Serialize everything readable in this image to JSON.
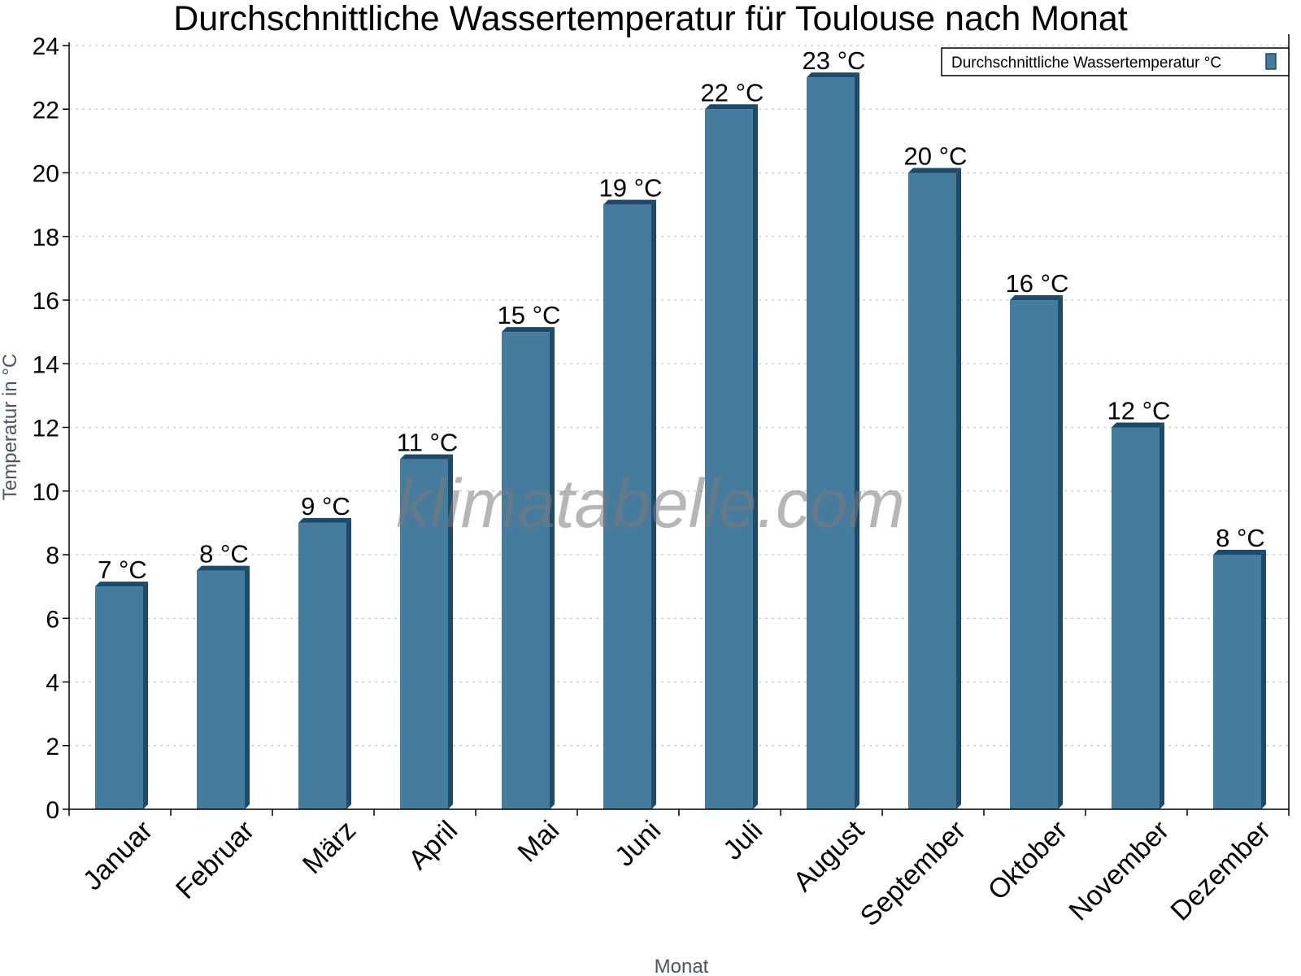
{
  "chart_data": {
    "type": "bar",
    "title": "Durchschnittliche Wassertemperatur für Toulouse nach Monat",
    "xlabel": "Monat",
    "ylabel": "Temperatur in °C",
    "ylim": [
      0,
      24
    ],
    "yticks": [
      0,
      2,
      4,
      6,
      8,
      10,
      12,
      14,
      16,
      18,
      20,
      22,
      24
    ],
    "grid": true,
    "legend_position": "top-right",
    "categories": [
      "Januar",
      "Februar",
      "März",
      "April",
      "Mai",
      "Juni",
      "Juli",
      "August",
      "September",
      "Oktober",
      "November",
      "Dezember"
    ],
    "series": [
      {
        "name": "Durchschnittliche Wassertemperatur °C",
        "values": [
          7,
          7.5,
          9,
          11,
          15,
          19,
          22,
          23,
          20,
          16,
          12,
          8
        ],
        "labels": [
          "7 °C",
          "8 °C",
          "9 °C",
          "11 °C",
          "15 °C",
          "19 °C",
          "22 °C",
          "23 °C",
          "20 °C",
          "16 °C",
          "12 °C",
          "8 °C"
        ],
        "color": "#457b9d",
        "edge_color": "#1b4a6b"
      }
    ],
    "watermark": "klimatabelle.com"
  }
}
